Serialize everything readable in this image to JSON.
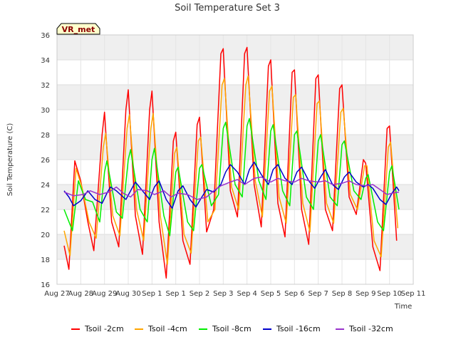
{
  "chart_data": {
    "type": "line",
    "title": "Soil Temperature Set 3",
    "xlabel": "Time",
    "ylabel": "Soil Temperature (C)",
    "ylim": [
      16,
      36
    ],
    "yticks": [
      16,
      18,
      20,
      22,
      24,
      26,
      28,
      30,
      32,
      34,
      36
    ],
    "xlim": [
      0,
      15
    ],
    "xticks": [
      {
        "x": 0,
        "label": "Aug 27"
      },
      {
        "x": 1,
        "label": "Aug 28"
      },
      {
        "x": 2,
        "label": "Aug 29"
      },
      {
        "x": 3,
        "label": "Aug 30"
      },
      {
        "x": 4,
        "label": "Sep 1"
      },
      {
        "x": 5,
        "label": "Sep 1"
      },
      {
        "x": 6,
        "label": "Sep 2"
      },
      {
        "x": 7,
        "label": "Sep 3"
      },
      {
        "x": 8,
        "label": "Sep 4"
      },
      {
        "x": 9,
        "label": "Sep 5"
      },
      {
        "x": 10,
        "label": "Sep 6"
      },
      {
        "x": 11,
        "label": "Sep 7"
      },
      {
        "x": 12,
        "label": "Sep 8"
      },
      {
        "x": 13,
        "label": "Sep 9"
      },
      {
        "x": 14,
        "label": "Sep 10"
      },
      {
        "x": 15,
        "label": "Sep 11"
      }
    ],
    "grid": true,
    "legend_position": "bottom",
    "badge": "VR_met",
    "series": [
      {
        "name": "Tsoil -2cm",
        "color": "#ff0000",
        "points": [
          [
            0.3,
            19.1
          ],
          [
            0.5,
            17.2
          ],
          [
            0.75,
            25.9
          ],
          [
            1.0,
            24.3
          ],
          [
            1.3,
            21.0
          ],
          [
            1.55,
            18.7
          ],
          [
            1.9,
            28.0
          ],
          [
            2.0,
            29.8
          ],
          [
            2.3,
            21.0
          ],
          [
            2.6,
            19.0
          ],
          [
            2.9,
            30.0
          ],
          [
            3.0,
            31.6
          ],
          [
            3.3,
            21.5
          ],
          [
            3.6,
            18.4
          ],
          [
            3.9,
            30.0
          ],
          [
            4.0,
            31.5
          ],
          [
            4.3,
            21.0
          ],
          [
            4.6,
            16.5
          ],
          [
            4.9,
            27.5
          ],
          [
            5.0,
            28.2
          ],
          [
            5.3,
            19.5
          ],
          [
            5.6,
            17.6
          ],
          [
            5.9,
            28.8
          ],
          [
            6.0,
            29.4
          ],
          [
            6.3,
            20.2
          ],
          [
            6.6,
            22.0
          ],
          [
            6.9,
            34.5
          ],
          [
            7.0,
            34.9
          ],
          [
            7.3,
            23.5
          ],
          [
            7.6,
            21.4
          ],
          [
            7.9,
            34.5
          ],
          [
            8.0,
            35.0
          ],
          [
            8.3,
            24.0
          ],
          [
            8.6,
            20.6
          ],
          [
            8.9,
            33.5
          ],
          [
            9.0,
            34.0
          ],
          [
            9.3,
            22.5
          ],
          [
            9.6,
            19.8
          ],
          [
            9.9,
            33.0
          ],
          [
            10.0,
            33.2
          ],
          [
            10.3,
            22.0
          ],
          [
            10.6,
            19.2
          ],
          [
            10.9,
            32.5
          ],
          [
            11.0,
            32.8
          ],
          [
            11.3,
            22.0
          ],
          [
            11.6,
            20.3
          ],
          [
            11.9,
            31.7
          ],
          [
            12.0,
            32.0
          ],
          [
            12.3,
            23.0
          ],
          [
            12.6,
            21.6
          ],
          [
            12.9,
            26.0
          ],
          [
            13.0,
            25.7
          ],
          [
            13.3,
            19.0
          ],
          [
            13.6,
            17.1
          ],
          [
            13.9,
            28.5
          ],
          [
            14.0,
            28.7
          ],
          [
            14.3,
            19.5
          ]
        ]
      },
      {
        "name": "Tsoil -4cm",
        "color": "#ffa500",
        "points": [
          [
            0.3,
            20.3
          ],
          [
            0.55,
            18.3
          ],
          [
            0.8,
            25.3
          ],
          [
            1.05,
            23.8
          ],
          [
            1.35,
            21.0
          ],
          [
            1.65,
            19.7
          ],
          [
            1.95,
            27.0
          ],
          [
            2.05,
            28.1
          ],
          [
            2.35,
            21.5
          ],
          [
            2.65,
            19.9
          ],
          [
            2.95,
            28.5
          ],
          [
            3.05,
            29.6
          ],
          [
            3.35,
            22.0
          ],
          [
            3.65,
            19.5
          ],
          [
            3.95,
            28.5
          ],
          [
            4.05,
            29.7
          ],
          [
            4.35,
            21.5
          ],
          [
            4.65,
            17.6
          ],
          [
            4.95,
            26.5
          ],
          [
            5.05,
            27.0
          ],
          [
            5.35,
            20.0
          ],
          [
            5.65,
            18.5
          ],
          [
            5.95,
            27.5
          ],
          [
            6.05,
            27.8
          ],
          [
            6.35,
            21.0
          ],
          [
            6.65,
            22.0
          ],
          [
            6.95,
            32.0
          ],
          [
            7.05,
            32.5
          ],
          [
            7.35,
            23.8
          ],
          [
            7.65,
            22.0
          ],
          [
            7.95,
            32.0
          ],
          [
            8.05,
            32.7
          ],
          [
            8.35,
            24.3
          ],
          [
            8.65,
            21.4
          ],
          [
            8.95,
            31.5
          ],
          [
            9.05,
            31.9
          ],
          [
            9.35,
            23.0
          ],
          [
            9.65,
            20.9
          ],
          [
            9.95,
            31.0
          ],
          [
            10.05,
            31.2
          ],
          [
            10.35,
            22.5
          ],
          [
            10.65,
            20.2
          ],
          [
            10.95,
            30.5
          ],
          [
            11.05,
            30.7
          ],
          [
            11.35,
            22.5
          ],
          [
            11.65,
            20.9
          ],
          [
            11.95,
            29.8
          ],
          [
            12.05,
            30.1
          ],
          [
            12.35,
            23.2
          ],
          [
            12.65,
            22.0
          ],
          [
            12.95,
            25.5
          ],
          [
            13.05,
            25.5
          ],
          [
            13.35,
            19.5
          ],
          [
            13.65,
            18.2
          ],
          [
            13.95,
            27.0
          ],
          [
            14.05,
            27.4
          ],
          [
            14.35,
            20.5
          ]
        ]
      },
      {
        "name": "Tsoil -8cm",
        "color": "#00ee00",
        "points": [
          [
            0.3,
            22.0
          ],
          [
            0.65,
            20.3
          ],
          [
            0.9,
            24.3
          ],
          [
            1.2,
            22.8
          ],
          [
            1.5,
            22.6
          ],
          [
            1.8,
            21.0
          ],
          [
            2.0,
            25.0
          ],
          [
            2.1,
            25.9
          ],
          [
            2.5,
            21.8
          ],
          [
            2.75,
            21.3
          ],
          [
            3.0,
            26.0
          ],
          [
            3.1,
            26.8
          ],
          [
            3.5,
            22.0
          ],
          [
            3.8,
            21.0
          ],
          [
            4.0,
            26.0
          ],
          [
            4.1,
            26.9
          ],
          [
            4.5,
            21.5
          ],
          [
            4.75,
            19.9
          ],
          [
            5.0,
            25.0
          ],
          [
            5.1,
            25.4
          ],
          [
            5.5,
            21.0
          ],
          [
            5.75,
            20.3
          ],
          [
            6.0,
            25.3
          ],
          [
            6.1,
            25.6
          ],
          [
            6.5,
            22.3
          ],
          [
            6.8,
            23.2
          ],
          [
            7.0,
            28.5
          ],
          [
            7.1,
            29.0
          ],
          [
            7.5,
            24.0
          ],
          [
            7.8,
            23.0
          ],
          [
            8.0,
            28.7
          ],
          [
            8.1,
            29.3
          ],
          [
            8.5,
            24.3
          ],
          [
            8.8,
            22.8
          ],
          [
            9.0,
            28.3
          ],
          [
            9.1,
            28.8
          ],
          [
            9.5,
            23.5
          ],
          [
            9.8,
            22.3
          ],
          [
            10.0,
            28.0
          ],
          [
            10.1,
            28.3
          ],
          [
            10.5,
            23.0
          ],
          [
            10.8,
            22.0
          ],
          [
            11.0,
            27.5
          ],
          [
            11.1,
            28.0
          ],
          [
            11.5,
            23.0
          ],
          [
            11.8,
            22.3
          ],
          [
            12.0,
            27.2
          ],
          [
            12.1,
            27.5
          ],
          [
            12.5,
            23.5
          ],
          [
            12.8,
            22.8
          ],
          [
            13.0,
            24.5
          ],
          [
            13.1,
            24.8
          ],
          [
            13.5,
            21.0
          ],
          [
            13.75,
            20.3
          ],
          [
            14.0,
            25.0
          ],
          [
            14.1,
            25.5
          ],
          [
            14.4,
            22.0
          ]
        ]
      },
      {
        "name": "Tsoil -16cm",
        "color": "#0000cc",
        "points": [
          [
            0.3,
            23.5
          ],
          [
            0.5,
            23.0
          ],
          [
            0.7,
            22.3
          ],
          [
            1.0,
            22.7
          ],
          [
            1.3,
            23.5
          ],
          [
            1.6,
            22.8
          ],
          [
            1.9,
            22.5
          ],
          [
            2.1,
            23.3
          ],
          [
            2.25,
            23.8
          ],
          [
            2.5,
            23.5
          ],
          [
            2.9,
            22.8
          ],
          [
            3.1,
            23.5
          ],
          [
            3.3,
            24.2
          ],
          [
            3.6,
            23.5
          ],
          [
            3.9,
            22.8
          ],
          [
            4.1,
            23.8
          ],
          [
            4.3,
            24.3
          ],
          [
            4.6,
            22.8
          ],
          [
            4.85,
            22.1
          ],
          [
            5.1,
            23.5
          ],
          [
            5.3,
            23.9
          ],
          [
            5.6,
            22.8
          ],
          [
            5.85,
            22.2
          ],
          [
            6.1,
            23.0
          ],
          [
            6.3,
            23.6
          ],
          [
            6.6,
            23.4
          ],
          [
            6.9,
            24.0
          ],
          [
            7.1,
            25.0
          ],
          [
            7.3,
            25.6
          ],
          [
            7.6,
            25.0
          ],
          [
            7.9,
            24.0
          ],
          [
            8.1,
            25.2
          ],
          [
            8.3,
            25.8
          ],
          [
            8.6,
            24.8
          ],
          [
            8.9,
            24.0
          ],
          [
            9.1,
            25.2
          ],
          [
            9.3,
            25.6
          ],
          [
            9.6,
            24.5
          ],
          [
            9.9,
            24.0
          ],
          [
            10.1,
            25.0
          ],
          [
            10.3,
            25.4
          ],
          [
            10.6,
            24.3
          ],
          [
            10.85,
            23.7
          ],
          [
            11.1,
            24.6
          ],
          [
            11.3,
            25.2
          ],
          [
            11.6,
            24.0
          ],
          [
            11.85,
            23.6
          ],
          [
            12.1,
            24.6
          ],
          [
            12.3,
            25.0
          ],
          [
            12.6,
            24.2
          ],
          [
            12.9,
            23.8
          ],
          [
            13.1,
            24.0
          ],
          [
            13.3,
            23.7
          ],
          [
            13.6,
            22.8
          ],
          [
            13.85,
            22.4
          ],
          [
            14.1,
            23.3
          ],
          [
            14.3,
            23.8
          ],
          [
            14.4,
            23.5
          ]
        ]
      },
      {
        "name": "Tsoil -32cm",
        "color": "#9933cc",
        "points": [
          [
            0.3,
            23.4
          ],
          [
            0.7,
            23.1
          ],
          [
            1.1,
            23.2
          ],
          [
            1.4,
            23.5
          ],
          [
            1.8,
            23.2
          ],
          [
            2.2,
            23.4
          ],
          [
            2.5,
            23.8
          ],
          [
            2.8,
            23.3
          ],
          [
            3.1,
            23.0
          ],
          [
            3.4,
            23.6
          ],
          [
            3.8,
            23.5
          ],
          [
            4.1,
            23.2
          ],
          [
            4.5,
            23.5
          ],
          [
            4.8,
            23.0
          ],
          [
            5.1,
            23.3
          ],
          [
            5.5,
            23.2
          ],
          [
            5.9,
            22.8
          ],
          [
            6.3,
            23.0
          ],
          [
            6.6,
            23.5
          ],
          [
            6.9,
            23.9
          ],
          [
            7.3,
            24.2
          ],
          [
            7.6,
            24.4
          ],
          [
            7.9,
            24.0
          ],
          [
            8.3,
            24.5
          ],
          [
            8.6,
            24.6
          ],
          [
            9.0,
            24.2
          ],
          [
            9.3,
            24.5
          ],
          [
            9.6,
            24.3
          ],
          [
            10.0,
            24.2
          ],
          [
            10.3,
            24.5
          ],
          [
            10.6,
            24.3
          ],
          [
            11.0,
            24.2
          ],
          [
            11.3,
            24.3
          ],
          [
            11.6,
            24.0
          ],
          [
            12.0,
            24.1
          ],
          [
            12.3,
            24.3
          ],
          [
            12.6,
            24.0
          ],
          [
            13.0,
            23.9
          ],
          [
            13.3,
            24.0
          ],
          [
            13.6,
            23.6
          ],
          [
            13.9,
            23.2
          ],
          [
            14.1,
            23.3
          ],
          [
            14.4,
            23.4
          ]
        ]
      }
    ]
  }
}
